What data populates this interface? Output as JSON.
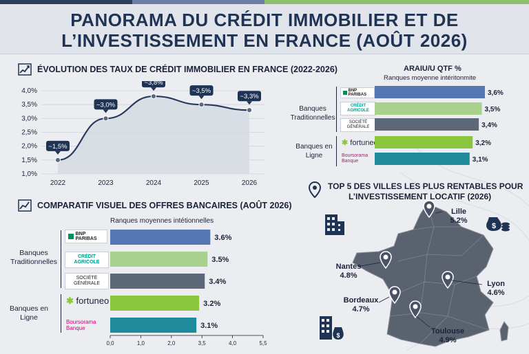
{
  "header": {
    "title_line1": "PANORAMA DU CRÉDIT IMMOBILIER ET DE",
    "title_line2": "L’INVESTISSEMENT EN FRANCE (AOÛT 2026)"
  },
  "colors": {
    "navy": "#1f3354",
    "blue_bar": "#5377b1",
    "light_green_bar": "#a9d18e",
    "gray_bar": "#5c6778",
    "green_bar": "#8cc63f",
    "teal_bar": "#1f8a9b",
    "map_fill": "#5a6270",
    "bnp_green": "#00915a",
    "ca_green": "#009a8e",
    "sg_red": "#e60028",
    "boursorama_pink": "#d4007a"
  },
  "rate_chart": {
    "title": "ÉVOLUTION DES TAUX DE CRÉDIT IMMOBILIER EN FRANCE (2022-2026)",
    "chart_data": {
      "type": "line",
      "x": [
        "2022",
        "2023",
        "2024",
        "2025",
        "2026"
      ],
      "values": [
        1.5,
        3.0,
        3.8,
        3.5,
        3.3
      ],
      "point_labels": [
        "~1,5%",
        "~3,0%",
        "~3,8%",
        "~3,5%",
        "~3,3%"
      ],
      "ylim": [
        1.0,
        4.0
      ],
      "yticks": [
        "1,0%",
        "1,5%",
        "2,0%",
        "2,5%",
        "3,0%",
        "3,5%",
        "4,0%"
      ],
      "grid": true
    }
  },
  "offers_chart": {
    "title": "COMPARATIF VISUEL DES OFFRES BANCAIRES (AOÛT 2026)",
    "subtitle": "Ranques moyennes intétionnelles",
    "groups": [
      "Banques Traditionnelles",
      "Banques en Ligne"
    ],
    "chart_data": {
      "type": "bar",
      "categories": [
        "BNP PARIBAS",
        "CRÉDIT AGRICOLE",
        "SOCIÉTÉ GÉNÉRALE",
        "fortuneo",
        "Boursorama Banque"
      ],
      "values": [
        3.6,
        3.5,
        3.4,
        3.2,
        3.1
      ],
      "value_labels": [
        "3.6%",
        "3.5%",
        "3.4%",
        "3.2%",
        "3.1%"
      ],
      "xticks": [
        "0,0",
        "1,0",
        "2,0",
        "3,5",
        "4,0",
        "5,5"
      ],
      "xlim": [
        0,
        5.5
      ]
    }
  },
  "mini_chart": {
    "title": "ARAIU/U QTF %",
    "subtitle": "Ranques moyenne intéritonmite",
    "groups": [
      "Banques Traditionnelles",
      "Banques en Ligne"
    ],
    "chart_data": {
      "type": "bar",
      "categories": [
        "BNP PARIBAS",
        "CRÉDIT AGRICOLE",
        "SOCIÉTÉ GÉNÉRALE",
        "fortuneo",
        "Boursorama Banque"
      ],
      "values": [
        3.6,
        3.5,
        3.4,
        3.2,
        3.1
      ],
      "value_labels": [
        "3,6%",
        "3,5%",
        "3,4%",
        "3,2%",
        "3,1%"
      ]
    }
  },
  "logos": {
    "bnp": "BNP PARIBAS",
    "ca_line1": "CRÉDIT",
    "ca_line2": "AGRICOLE",
    "sg_line1": "SOCIÉTÉ",
    "sg_line2": "GÉNÉRALE",
    "fortuneo": "fortuneo",
    "bourso_line1": "Boursorama",
    "bourso_line2": "Banque"
  },
  "map": {
    "title_line1": "TOP 5 DES VILLES LES PLUS RENTABLES POUR",
    "title_line2": "L’INVESTISSEMENT LOCATIF (2026)",
    "cities": [
      {
        "name": "Lille",
        "value": "5.2%"
      },
      {
        "name": "Nantes",
        "value": "4.8%"
      },
      {
        "name": "Bordeaux",
        "value": "4.7%"
      },
      {
        "name": "Lyon",
        "value": "4.6%"
      },
      {
        "name": "Toulouse",
        "value": "4.9%"
      }
    ]
  }
}
